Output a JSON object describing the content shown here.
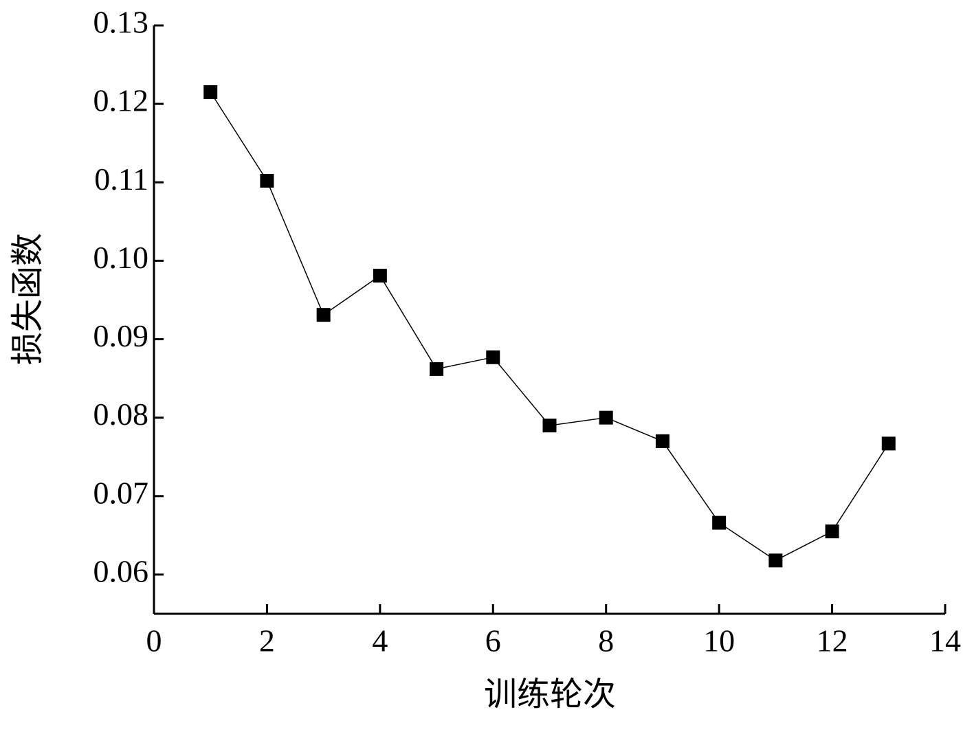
{
  "chart_data": {
    "type": "line",
    "x_label": "训练轮次",
    "y_label": "损失函数",
    "series": [
      {
        "color": "#000000",
        "x": [
          1,
          2,
          3,
          4,
          5,
          6,
          7,
          8,
          9,
          10,
          11,
          12,
          13
        ],
        "values": [
          0.1215,
          0.1102,
          0.0931,
          0.0981,
          0.0862,
          0.0877,
          0.079,
          0.08,
          0.077,
          0.0666,
          0.0618,
          0.0655,
          0.0767
        ]
      }
    ],
    "xlim": [
      0,
      14
    ],
    "xticks": [
      0,
      2,
      4,
      6,
      8,
      10,
      12,
      14
    ],
    "ylim": [
      0.055,
      0.13
    ],
    "yticks": [
      0.06,
      0.07,
      0.08,
      0.09,
      {
        "value": 0.1,
        "label": "0.10"
      },
      0.11,
      0.12,
      0.13
    ],
    "grid": false
  }
}
